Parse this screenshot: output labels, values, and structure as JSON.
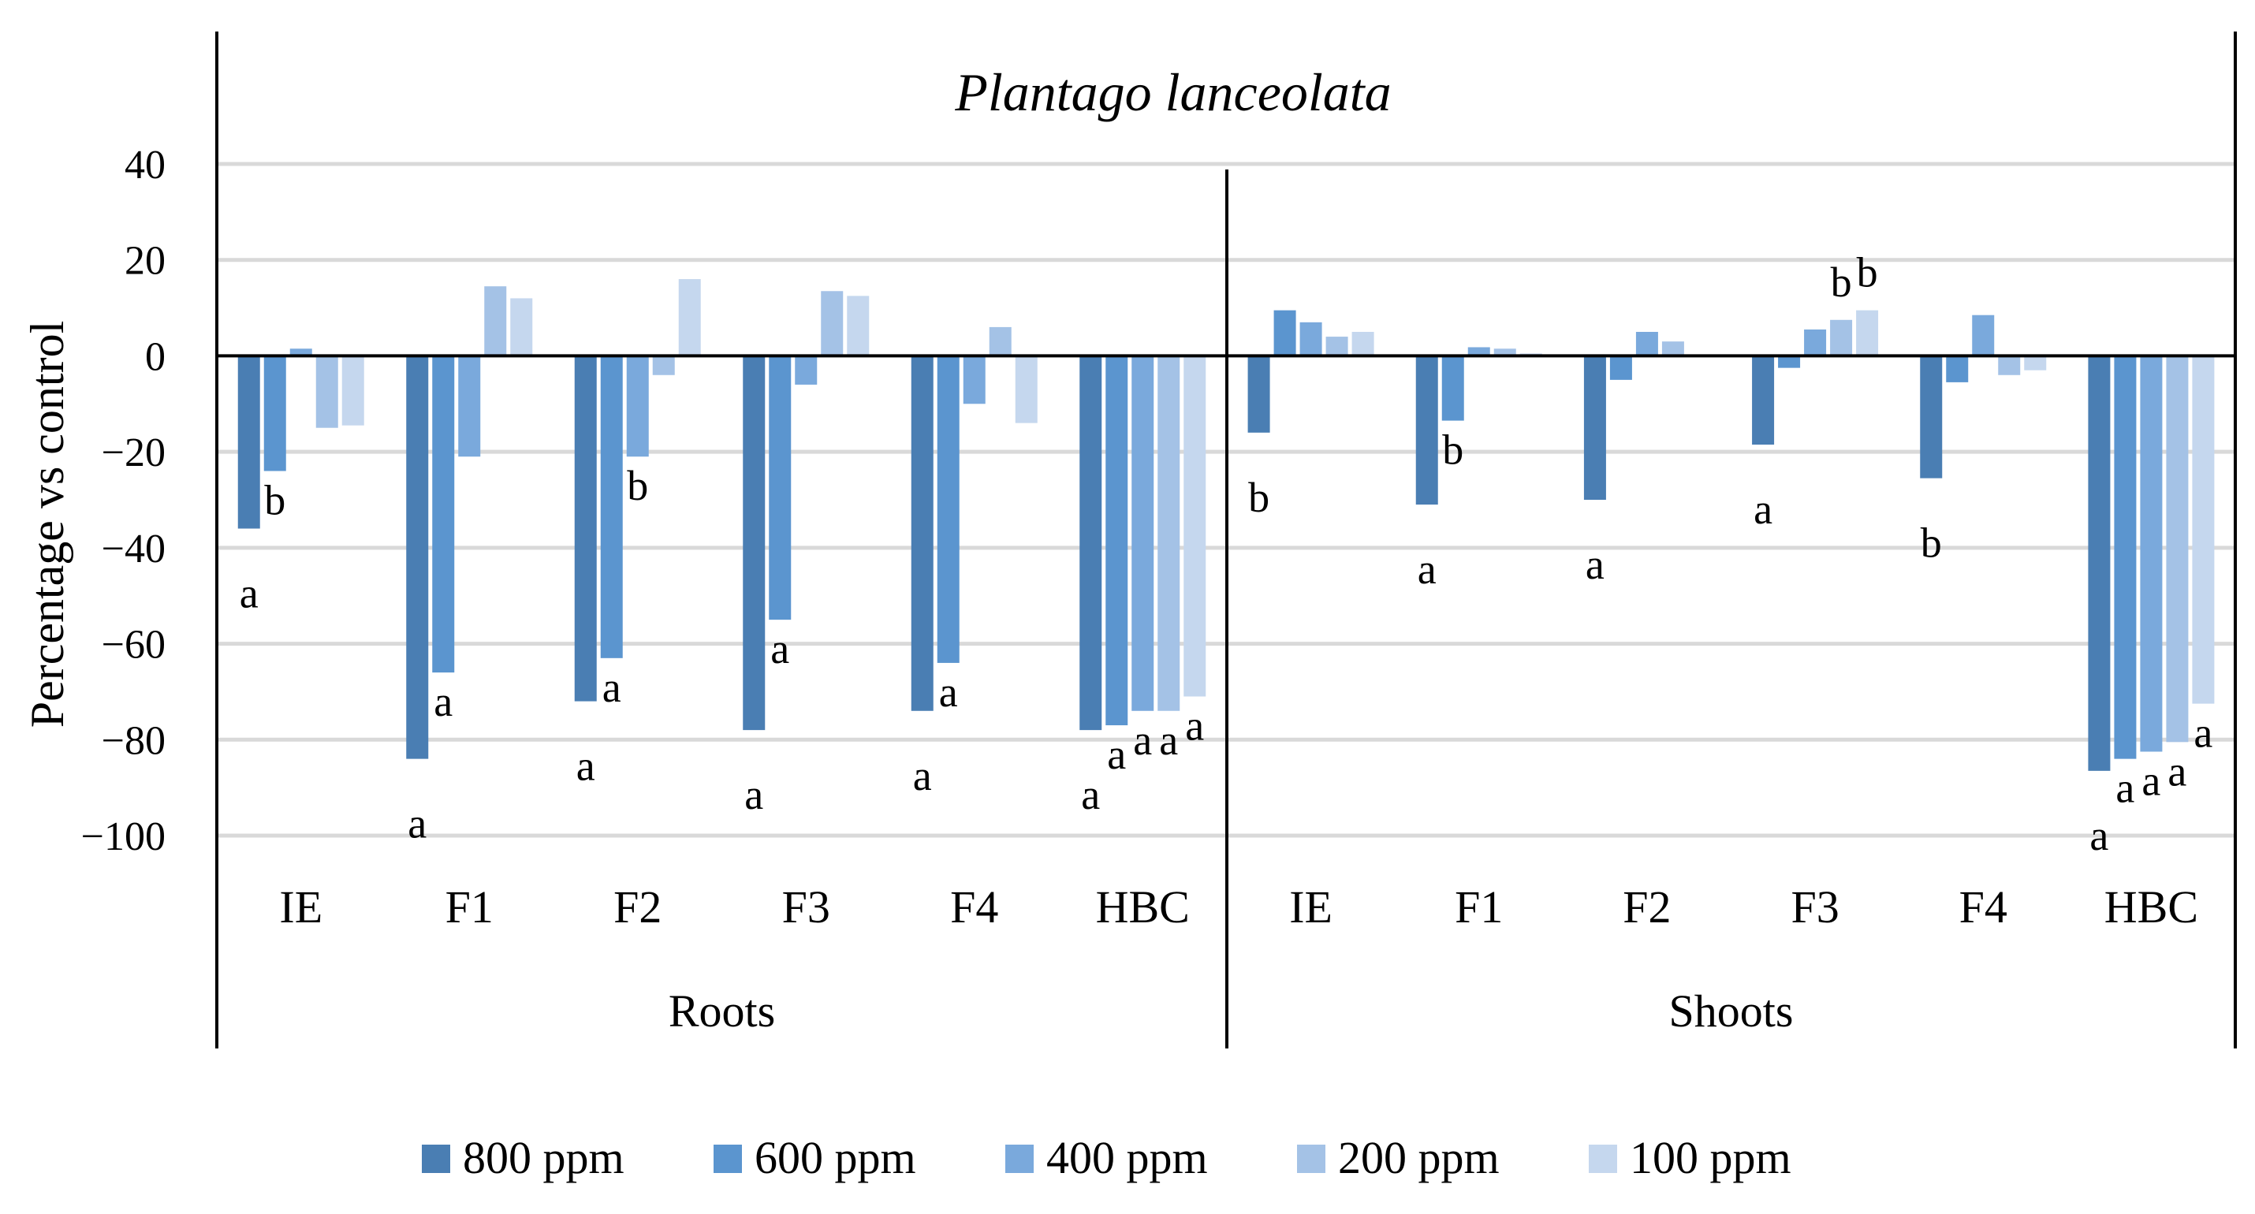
{
  "chart_data": {
    "type": "bar",
    "title": "Plantago lanceolata",
    "ylabel": "Percentage vs control",
    "xlabel": "",
    "ylim": [
      -100,
      40
    ],
    "yticks": [
      40,
      20,
      0,
      -20,
      -40,
      -60,
      -80,
      -100
    ],
    "ytick_labels": [
      "40",
      "20",
      "0",
      "−20",
      "−40",
      "−60",
      "−80",
      "−100"
    ],
    "grid": true,
    "legend_position": "bottom",
    "groups": [
      {
        "name": "Roots",
        "categories": [
          {
            "label": "IE",
            "values": [
              -36,
              -24,
              1.5,
              -15,
              -14.5
            ],
            "letters": [
              "a",
              "b",
              "",
              "",
              ""
            ]
          },
          {
            "label": "F1",
            "values": [
              -84,
              -66,
              -21,
              14.5,
              12
            ],
            "letters": [
              "a",
              "a",
              "",
              "",
              ""
            ]
          },
          {
            "label": "F2",
            "values": [
              -72,
              -63,
              -21,
              -4,
              16
            ],
            "letters": [
              "a",
              "a",
              "b",
              "",
              ""
            ]
          },
          {
            "label": "F3",
            "values": [
              -78,
              -55,
              -6,
              13.5,
              12.5
            ],
            "letters": [
              "a",
              "a",
              "",
              "",
              ""
            ]
          },
          {
            "label": "F4",
            "values": [
              -74,
              -64,
              -10,
              6,
              -14
            ],
            "letters": [
              "a",
              "a",
              "",
              "",
              ""
            ]
          },
          {
            "label": "HBC",
            "values": [
              -78,
              -77,
              -74,
              -74,
              -71
            ],
            "letters": [
              "a",
              "a",
              "a",
              "a",
              "a"
            ]
          }
        ]
      },
      {
        "name": "Shoots",
        "categories": [
          {
            "label": "IE",
            "values": [
              -16,
              9.5,
              7,
              4,
              5
            ],
            "letters": [
              "b",
              "",
              "",
              "",
              ""
            ]
          },
          {
            "label": "F1",
            "values": [
              -31,
              -13.5,
              1.8,
              1.5,
              0.5
            ],
            "letters": [
              "a",
              "b",
              "",
              "",
              ""
            ]
          },
          {
            "label": "F2",
            "values": [
              -30,
              -5,
              5,
              3,
              0
            ],
            "letters": [
              "a",
              "",
              "",
              "",
              ""
            ]
          },
          {
            "label": "F3",
            "values": [
              -18.5,
              -2.5,
              5.5,
              7.5,
              9.5
            ],
            "letters": [
              "a",
              "",
              "",
              "b",
              "b"
            ]
          },
          {
            "label": "F4",
            "values": [
              -25.5,
              -5.5,
              8.5,
              -4,
              -3
            ],
            "letters": [
              "b",
              "",
              "",
              "",
              ""
            ]
          },
          {
            "label": "HBC",
            "values": [
              -86.5,
              -84,
              -82.5,
              -80.5,
              -72.5
            ],
            "letters": [
              "a",
              "a",
              "a",
              "a",
              "a"
            ]
          }
        ]
      }
    ],
    "series": [
      {
        "name": "800 ppm",
        "color": "#4a7eb3"
      },
      {
        "name": "600 ppm",
        "color": "#5b95cf"
      },
      {
        "name": "400 ppm",
        "color": "#7aa9dc"
      },
      {
        "name": "200 ppm",
        "color": "#a4c2e6"
      },
      {
        "name": "100 ppm",
        "color": "#c5d7ee"
      }
    ]
  }
}
